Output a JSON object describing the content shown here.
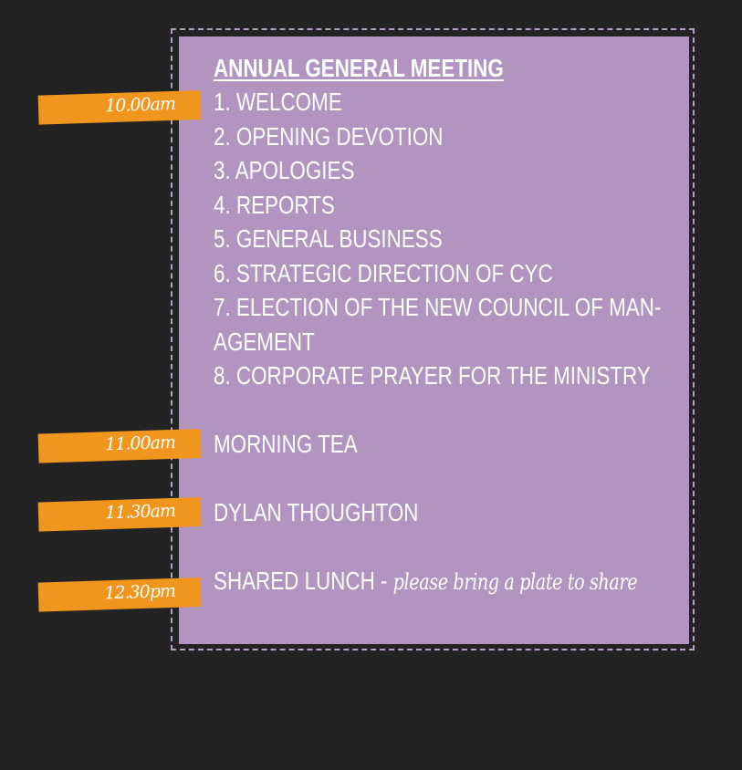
{
  "title": "ANNUAL GENERAL MEETING",
  "agenda": [
    "1. WELCOME",
    "2. OPENING DEVOTION",
    "3. APOLOGIES",
    "4. REPORTS",
    "5. GENERAL BUSINESS",
    "6. STRATEGIC DIRECTION OF CYC",
    "7. ELECTION OF THE NEW COUNCIL OF MAN-",
    "AGEMENT",
    "8. CORPORATE PRAYER FOR THE MINISTRY"
  ],
  "schedule": [
    {
      "time": "10.00am"
    },
    {
      "time": "11.00am",
      "label": "MORNING TEA"
    },
    {
      "time": "11.30am",
      "label": "DYLAN THOUGHTON"
    },
    {
      "time": "12.30pm",
      "label": "SHARED LUNCH",
      "separator": " - ",
      "note": "please bring a plate to share"
    }
  ],
  "colors": {
    "background": "#232323",
    "panel": "#b194c0",
    "tag": "#f0951e",
    "text": "#ffffff"
  }
}
